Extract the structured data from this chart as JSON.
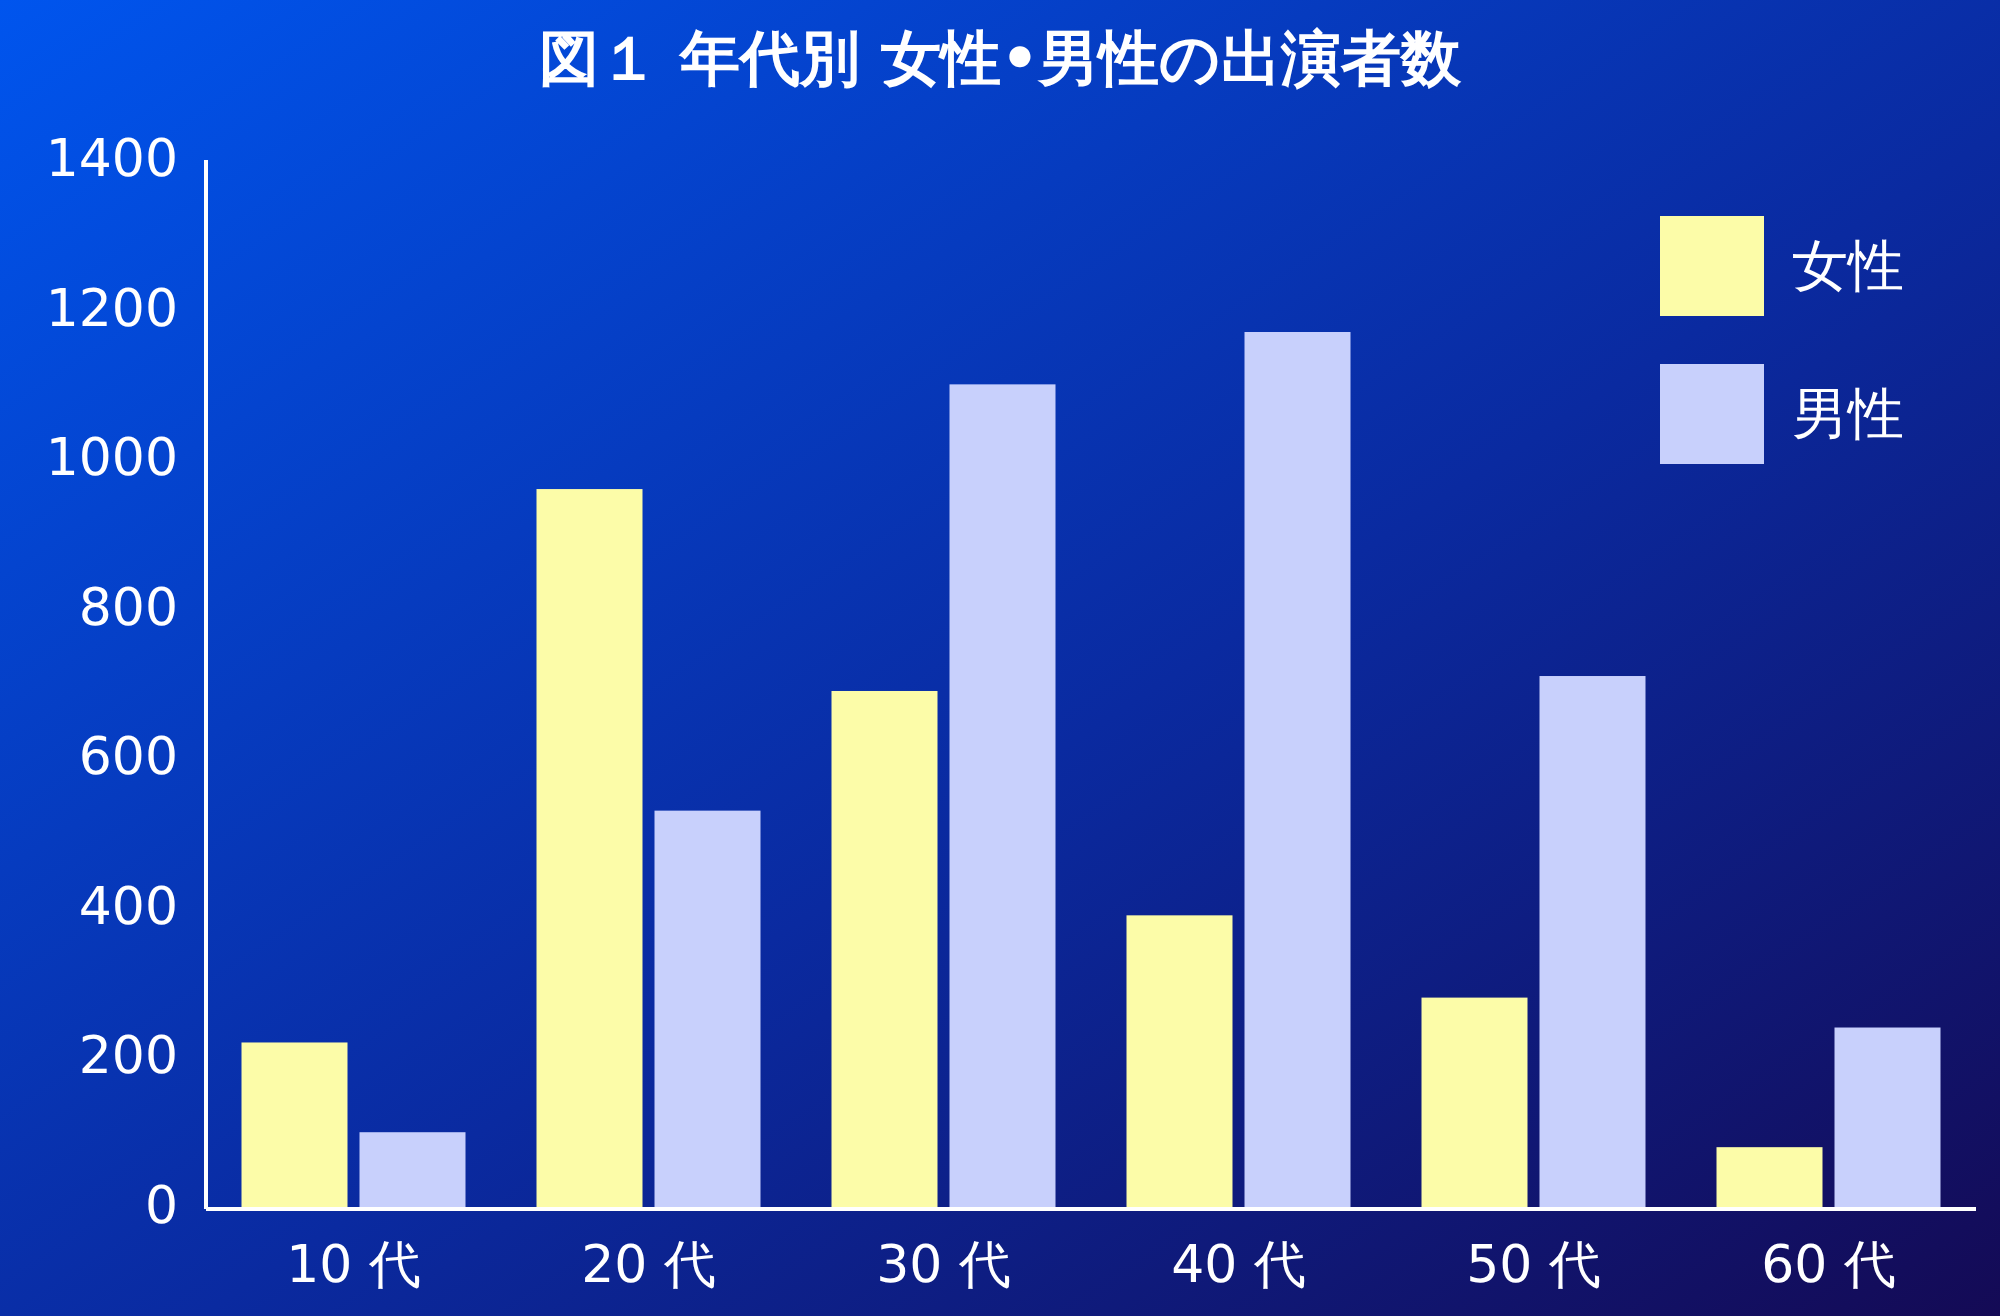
{
  "chart_data": {
    "type": "bar",
    "title": "図１  年代別  女性•男性の出演者数",
    "categories": [
      "10 代",
      "20 代",
      "30 代",
      "40 代",
      "50 代",
      "60 代"
    ],
    "series": [
      {
        "name": "女性",
        "color": "#fcfca8",
        "values": [
          220,
          960,
          690,
          390,
          280,
          80
        ]
      },
      {
        "name": "男性",
        "color": "#c8d0fc",
        "values": [
          100,
          530,
          1100,
          1170,
          710,
          240
        ]
      }
    ],
    "ylim": [
      0,
      1400
    ],
    "yticks": [
      0,
      200,
      400,
      600,
      800,
      1000,
      1200,
      1400
    ],
    "legend": "top right"
  }
}
